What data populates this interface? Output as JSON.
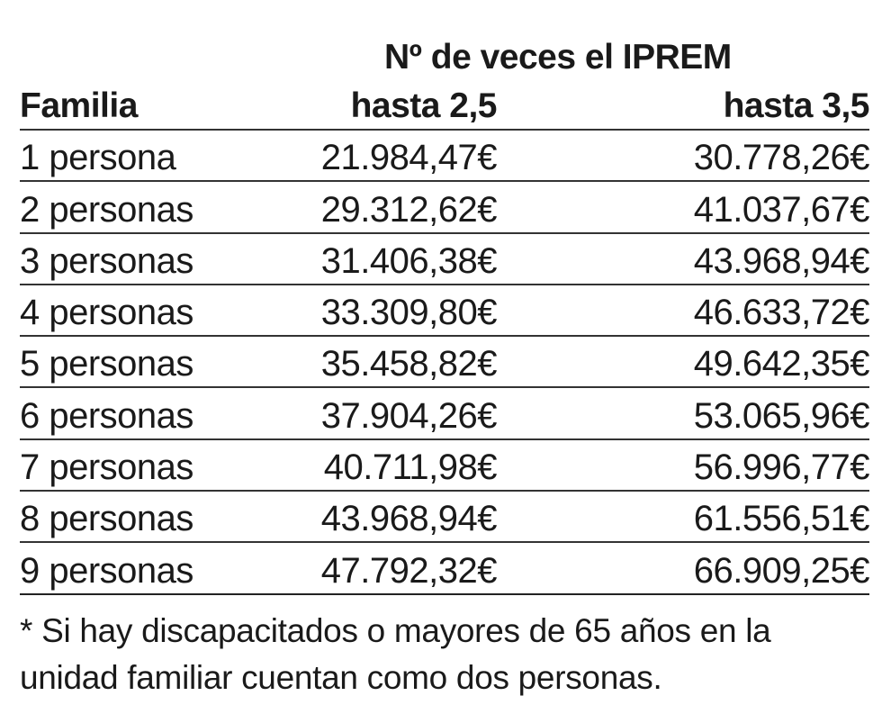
{
  "table": {
    "super_header": "Nº de veces el IPREM",
    "headers": [
      "Familia",
      "hasta 2,5",
      "hasta 3,5"
    ],
    "rows": [
      [
        "1 persona",
        "21.984,47€",
        "30.778,26€"
      ],
      [
        "2 personas",
        "29.312,62€",
        "41.037,67€"
      ],
      [
        "3 personas",
        "31.406,38€",
        "43.968,94€"
      ],
      [
        "4 personas",
        "33.309,80€",
        "46.633,72€"
      ],
      [
        "5 personas",
        "35.458,82€",
        "49.642,35€"
      ],
      [
        "6 personas",
        "37.904,26€",
        "53.065,96€"
      ],
      [
        "7 personas",
        "40.711,98€",
        "56.996,77€"
      ],
      [
        "8 personas",
        "43.968,94€",
        "61.556,51€"
      ],
      [
        "9 personas",
        "47.792,32€",
        "66.909,25€"
      ]
    ]
  },
  "footnote": "* Si hay discapacitados o mayores de 65 años en la unidad familiar cuentan como dos personas."
}
